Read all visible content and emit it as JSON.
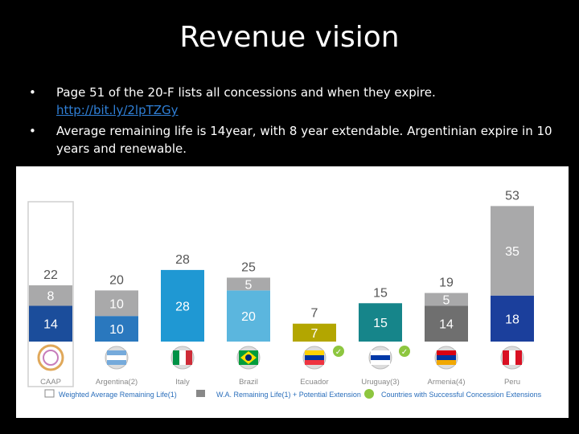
{
  "slide": {
    "title": "Revenue vision",
    "bullets": [
      {
        "bullet_char": "•",
        "text": "Page 51 of the 20-F lists all concessions and when they expire.",
        "link": "http://bit.ly/2lpTZGy"
      },
      {
        "bullet_char": "•",
        "text": "Average remaining life is 14year, with 8 year extendable. Argentinian expire in 10 years and renewable."
      }
    ]
  },
  "colors": {
    "w_avg_life": [
      "#1b4d9b",
      "#2a78be",
      "#1f98d3",
      "#5bb6de",
      "#b3a600",
      "#16858a",
      "#6f6f6f",
      "#1b3f9c"
    ],
    "extension": "#a9a9aa",
    "check": "#8dc63f",
    "caap_box_stroke": "#cfcfcf"
  },
  "chart_data": {
    "type": "bar",
    "stacked": true,
    "categories": [
      "CAAP",
      "Argentina(2)",
      "Italy",
      "Brazil",
      "Ecuador",
      "Uruguay(3)",
      "Armenia(4)",
      "Peru"
    ],
    "series": [
      {
        "name": "Weighted Average Remaining Life(1)",
        "values": [
          14,
          10,
          28,
          20,
          7,
          15,
          14,
          18
        ]
      },
      {
        "name": "W.A. Remaining Life(1) + Potential Extension",
        "values": [
          8,
          10,
          0,
          5,
          0,
          0,
          5,
          35
        ]
      }
    ],
    "totals": [
      22,
      20,
      28,
      25,
      7,
      15,
      19,
      53
    ],
    "segment_labels": [
      [
        "14",
        "8"
      ],
      [
        "10",
        "10"
      ],
      [
        "28",
        ""
      ],
      [
        "20",
        "5"
      ],
      [
        "7",
        ""
      ],
      [
        "15",
        ""
      ],
      [
        "14",
        "5"
      ],
      [
        "18",
        "35"
      ]
    ],
    "successful_extension": [
      false,
      false,
      false,
      false,
      true,
      true,
      false,
      false
    ],
    "flags": [
      "caap-logo",
      "argentina-flag",
      "italy-flag",
      "brazil-flag",
      "ecuador-flag",
      "uruguay-flag",
      "armenia-flag",
      "peru-flag"
    ],
    "ylim": [
      0,
      55
    ],
    "legend": [
      {
        "key": "box",
        "label": "Weighted Average Remaining Life(1)"
      },
      {
        "key": "gray",
        "label": "W.A. Remaining Life(1) + Potential Extension"
      },
      {
        "key": "check",
        "label": "Countries with Successful Concession Extensions"
      }
    ]
  }
}
